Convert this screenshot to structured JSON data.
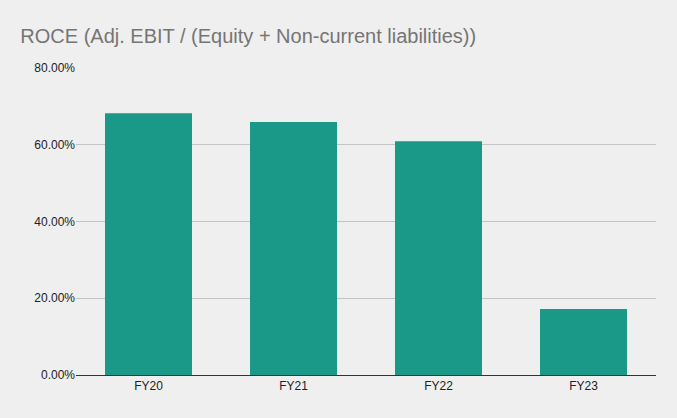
{
  "chart_data": {
    "type": "bar",
    "title": "ROCE (Adj. EBIT / (Equity + Non-current liabilities))",
    "categories": [
      "FY20",
      "FY21",
      "FY22",
      "FY23"
    ],
    "values": [
      68.2,
      65.9,
      60.9,
      17.2
    ],
    "color": "#1a9988",
    "ylim": [
      0,
      80
    ],
    "yticks": [
      {
        "value": 0,
        "label": "0.00%"
      },
      {
        "value": 20,
        "label": "20.00%"
      },
      {
        "value": 40,
        "label": "40.00%"
      },
      {
        "value": 60,
        "label": "60.00%"
      },
      {
        "value": 80,
        "label": "80.00%"
      }
    ],
    "grid": true
  }
}
